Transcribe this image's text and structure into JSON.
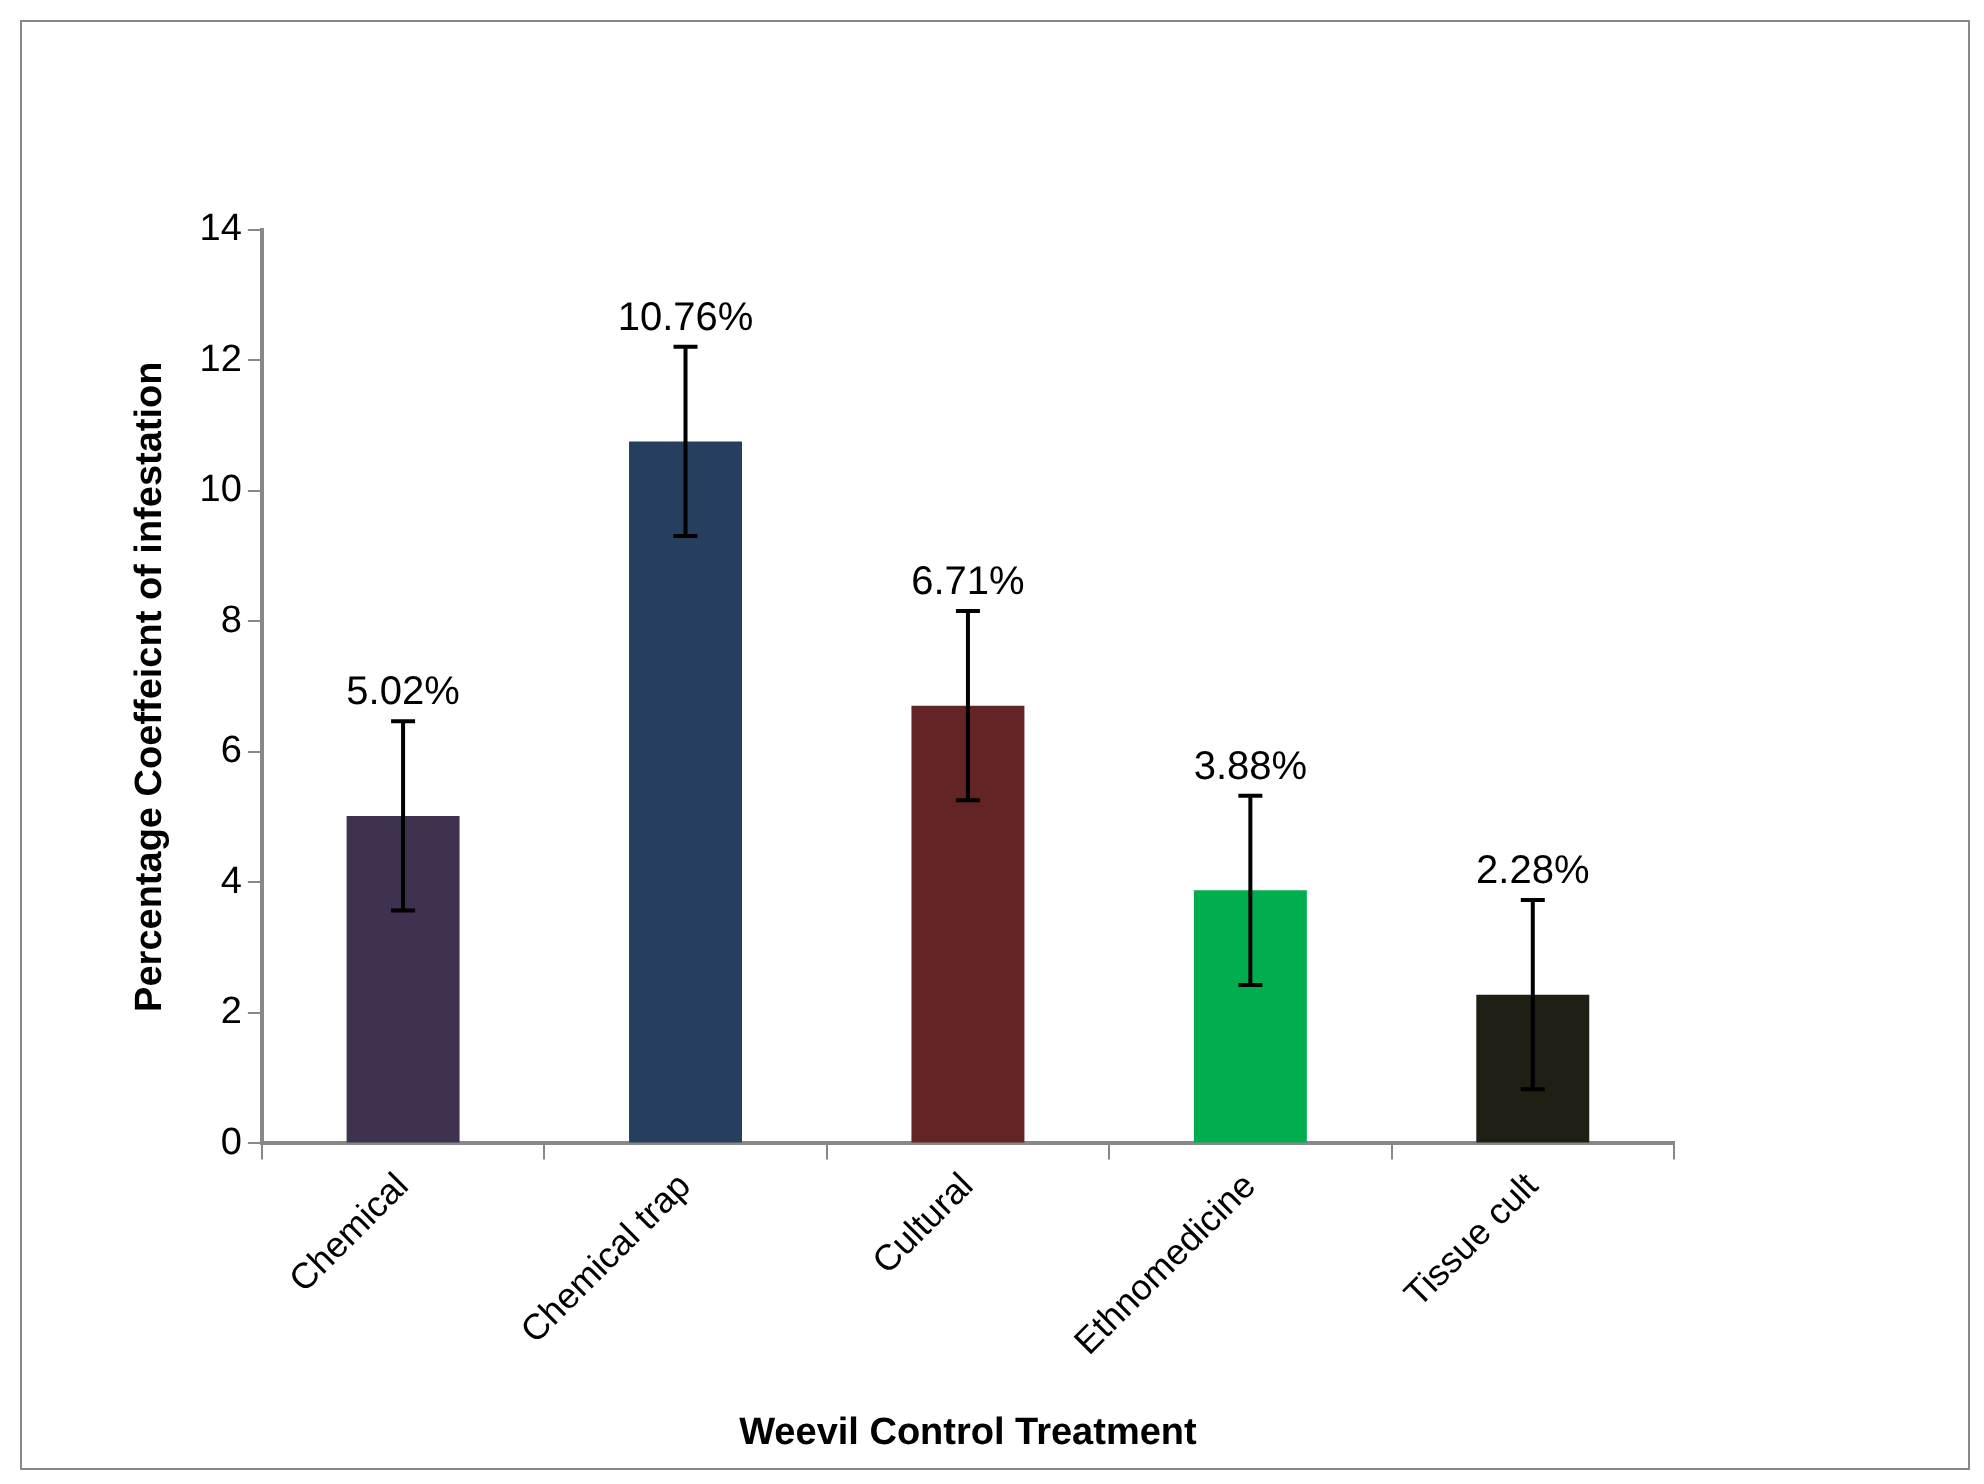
{
  "chart_data": {
    "type": "bar",
    "xlabel": "Weevil Control Treatment",
    "ylabel": "Percentage Coeffeicnt of infestation",
    "categories": [
      "Chemical",
      "Chemical trap",
      "Cultural",
      "Ethnomedicine",
      "Tissue cult"
    ],
    "values": [
      5.02,
      10.76,
      6.71,
      3.88,
      2.28
    ],
    "colors": [
      "#3f3150",
      "#273f5f",
      "#632425",
      "#00ae4f",
      "#201f14"
    ],
    "errors": [
      1.45,
      1.45,
      1.45,
      1.45,
      1.45
    ],
    "value_labels": [
      "5.02%",
      "10.76%",
      "6.71%",
      "3.88%",
      "2.28%"
    ],
    "ylim": [
      0,
      14
    ],
    "yticks": [
      0,
      2,
      4,
      6,
      8,
      10,
      12,
      14
    ],
    "grid": false,
    "legend": false
  }
}
